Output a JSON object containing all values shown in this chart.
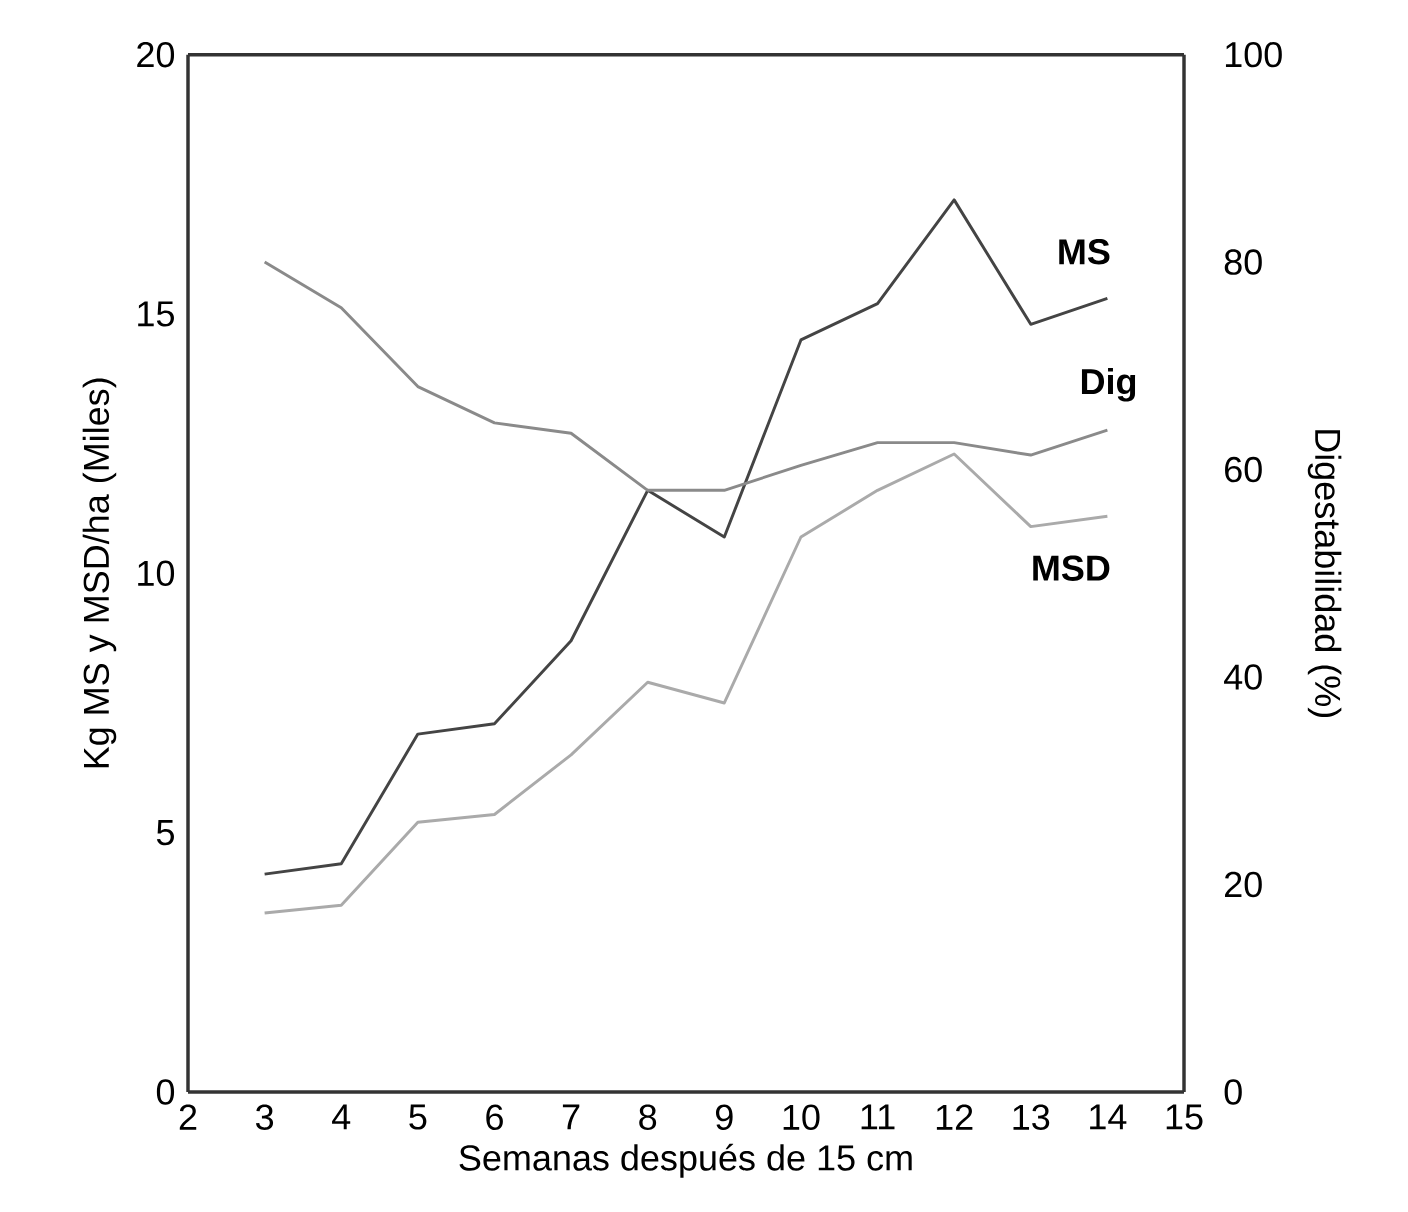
{
  "chart_data": {
    "type": "line",
    "xlabel": "Semanas después de 15 cm",
    "ylabel": "Kg MS y MSD/ha (Miles)",
    "y2label": "Digestabilidad (%)",
    "x": [
      3,
      4,
      5,
      6,
      7,
      8,
      9,
      10,
      11,
      12,
      13,
      14
    ],
    "xlim": [
      2,
      15
    ],
    "xticks": [
      2,
      3,
      4,
      5,
      6,
      7,
      8,
      9,
      10,
      11,
      12,
      13,
      14,
      15
    ],
    "ylim": [
      0,
      20
    ],
    "yticks": [
      0,
      5,
      10,
      15,
      20
    ],
    "y2lim": [
      0,
      100
    ],
    "y2ticks": [
      0,
      20,
      40,
      60,
      80,
      100
    ],
    "series": [
      {
        "name": "MS",
        "color": "#444444",
        "values": [
          4.2,
          4.4,
          6.9,
          7.1,
          8.7,
          11.6,
          10.7,
          14.5,
          15.2,
          17.2,
          14.8,
          15.3
        ]
      },
      {
        "name": "Dig",
        "color": "#8a8a8a",
        "axis": "y2",
        "values": [
          80,
          75.6,
          68,
          64.5,
          63.5,
          58,
          58,
          60.4,
          62.6,
          62.6,
          61.4,
          63.8
        ]
      },
      {
        "name": "MSD",
        "color": "#aaaaaa",
        "values": [
          3.45,
          3.6,
          5.2,
          5.35,
          6.5,
          7.9,
          7.5,
          10.7,
          11.6,
          12.3,
          10.9,
          11.1
        ]
      }
    ]
  }
}
